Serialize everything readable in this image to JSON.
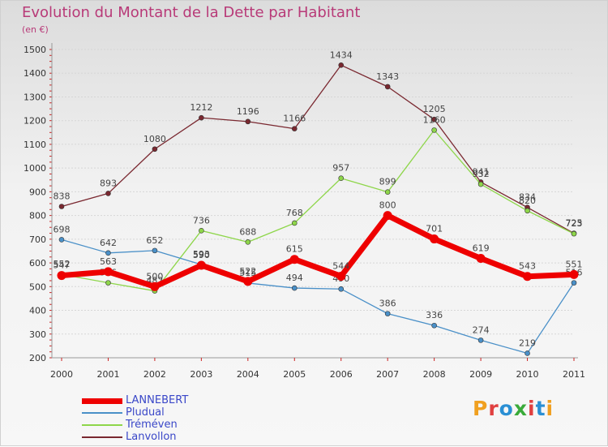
{
  "title": "Evolution du Montant de la Dette par Habitant",
  "unit": "(en €)",
  "logo": {
    "text": "Proxiti",
    "colors": [
      "#f0a020",
      "#e04040",
      "#2a8fd4",
      "#3aaa3a",
      "#e04040",
      "#2a8fd4",
      "#f0a020"
    ]
  },
  "chart_data": {
    "type": "line",
    "x": [
      "2000",
      "2001",
      "2002",
      "2003",
      "2004",
      "2005",
      "2006",
      "2007",
      "2008",
      "2009",
      "2010",
      "2011"
    ],
    "ylim": [
      200,
      1500
    ],
    "yticks": [
      200,
      300,
      400,
      500,
      600,
      700,
      800,
      900,
      1000,
      1100,
      1200,
      1300,
      1400,
      1500
    ],
    "grid": "horizontal",
    "legend_position": "bottom-left",
    "series": [
      {
        "name": "Lanvollon",
        "color": "#7a2830",
        "values": [
          838,
          893,
          1080,
          1212,
          1196,
          1166,
          1434,
          1343,
          1205,
          941,
          834,
          725
        ]
      },
      {
        "name": "Tréméven",
        "color": "#8ed64a",
        "values": [
          552,
          516,
          482,
          736,
          688,
          768,
          957,
          899,
          1160,
          932,
          820,
          723
        ]
      },
      {
        "name": "Pludual",
        "color": "#4a90c8",
        "values": [
          698,
          642,
          652,
          593,
          515,
          494,
          490,
          386,
          336,
          274,
          219,
          516
        ]
      },
      {
        "name": "LANNEBERT",
        "color": "#ee0000",
        "values": [
          547,
          563,
          500,
          590,
          522,
          615,
          544,
          800,
          701,
          619,
          543,
          551
        ]
      }
    ]
  },
  "legend": [
    {
      "name": "LANNEBERT",
      "color": "#ee0000",
      "width": 7
    },
    {
      "name": "Pludual",
      "color": "#4a90c8",
      "width": 2
    },
    {
      "name": "Tréméven",
      "color": "#8ed64a",
      "width": 2
    },
    {
      "name": "Lanvollon",
      "color": "#7a2830",
      "width": 2
    }
  ]
}
